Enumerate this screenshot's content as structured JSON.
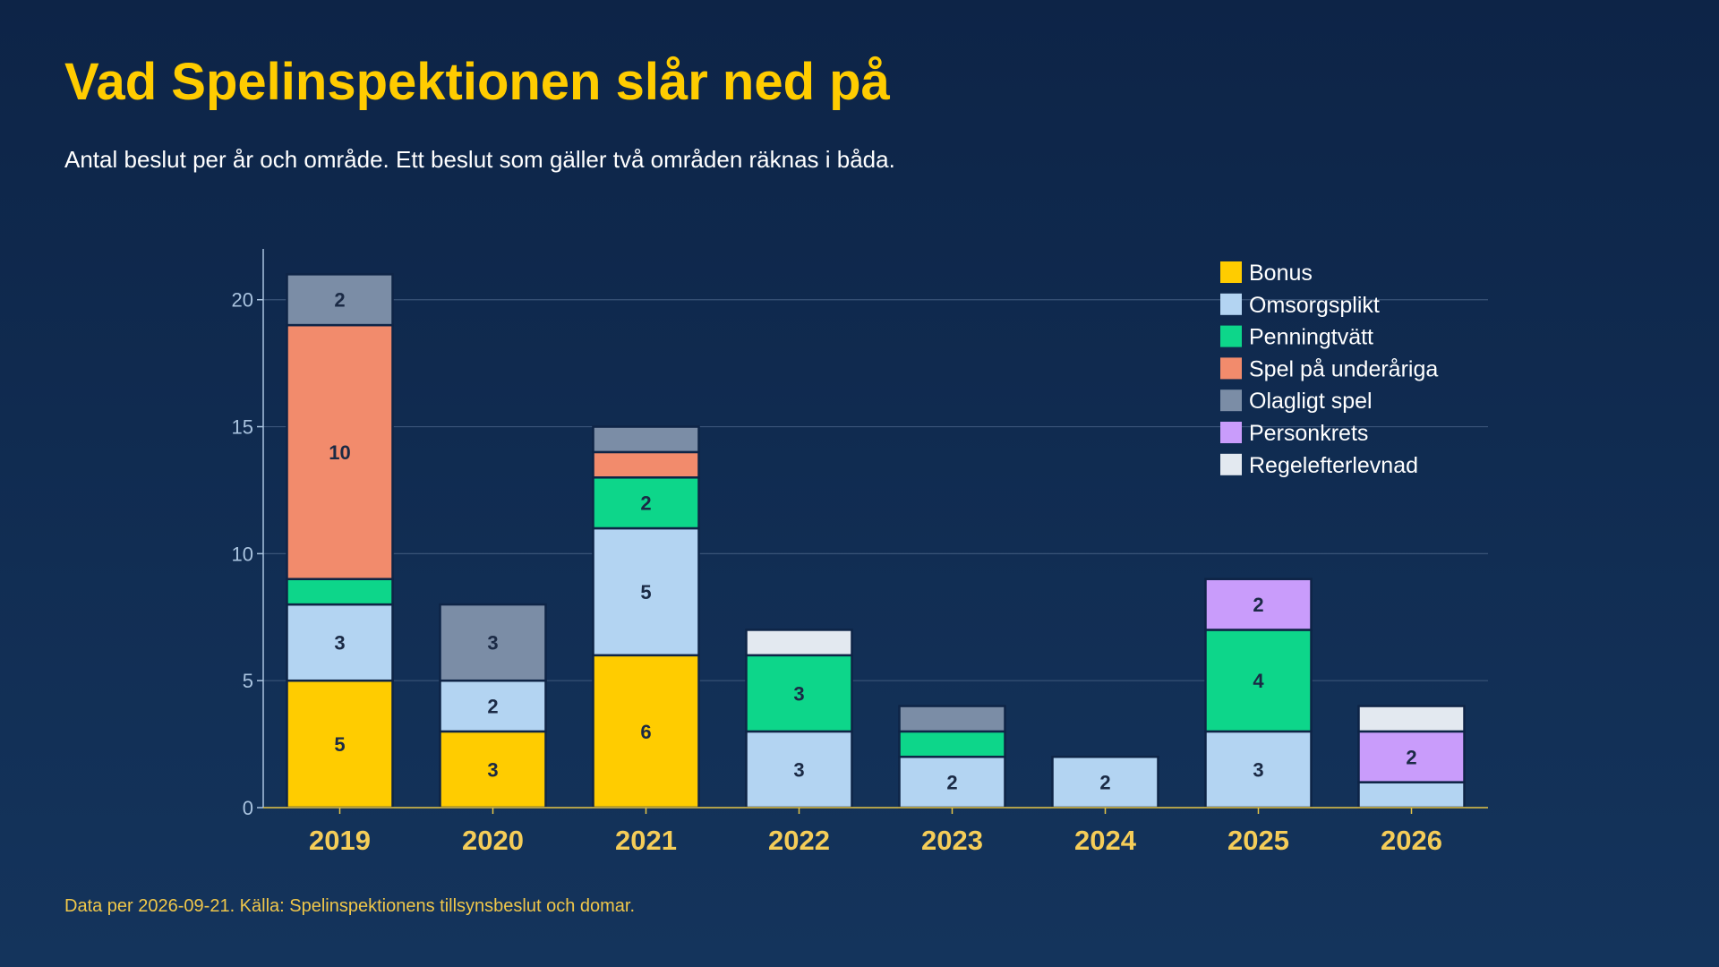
{
  "title": "Vad Spelinspektionen slår ned på",
  "subtitle": "Antal beslut per år och område. Ett beslut som gäller två områden räknas i båda.",
  "footer": "Data per 2026-09-21. Källa: Spelinspektionens tillsynsbeslut och domar.",
  "chart_data": {
    "type": "bar",
    "stacked": true,
    "categories": [
      "2019",
      "2020",
      "2021",
      "2022",
      "2023",
      "2024",
      "2025",
      "2026"
    ],
    "series": [
      {
        "name": "Bonus",
        "color": "#ffcc00",
        "values": [
          5,
          3,
          6,
          0,
          0,
          0,
          0,
          0
        ]
      },
      {
        "name": "Omsorgsplikt",
        "color": "#b3d4f2",
        "values": [
          3,
          2,
          5,
          3,
          2,
          2,
          3,
          1
        ]
      },
      {
        "name": "Penningtvätt",
        "color": "#0dd68a",
        "values": [
          1,
          0,
          2,
          3,
          1,
          0,
          4,
          0
        ]
      },
      {
        "name": "Spel på underåriga",
        "color": "#f28b6c",
        "values": [
          10,
          0,
          1,
          0,
          0,
          0,
          0,
          0
        ]
      },
      {
        "name": "Olagligt spel",
        "color": "#7b8da6",
        "values": [
          2,
          3,
          1,
          0,
          1,
          0,
          0,
          0
        ]
      },
      {
        "name": "Personkrets",
        "color": "#c99cfb",
        "values": [
          0,
          0,
          0,
          0,
          0,
          0,
          2,
          2
        ]
      },
      {
        "name": "Regelefterlevnad",
        "color": "#e3e9f0",
        "values": [
          0,
          0,
          0,
          1,
          0,
          0,
          0,
          1
        ]
      }
    ],
    "ylim": [
      0,
      22
    ],
    "yticks": [
      0,
      5,
      10,
      15,
      20
    ],
    "grid": true,
    "legend": "top-right",
    "segment_label_min": 2
  }
}
